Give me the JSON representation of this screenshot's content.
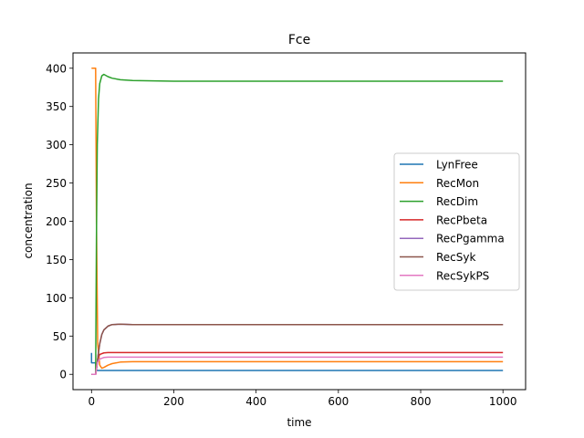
{
  "chart_data": {
    "type": "line",
    "title": "Fce",
    "xlabel": "time",
    "ylabel": "concentration",
    "xlim": [
      -45,
      1055
    ],
    "ylim": [
      -20,
      420
    ],
    "xticks": [
      0,
      200,
      400,
      600,
      800,
      1000
    ],
    "yticks": [
      0,
      50,
      100,
      150,
      200,
      250,
      300,
      350,
      400
    ],
    "grid": false,
    "legend_position": "center-right",
    "series": [
      {
        "name": "LynFree",
        "color": "#1f77b4",
        "points": [
          [
            0,
            28
          ],
          [
            0.01,
            15
          ],
          [
            10,
            15
          ],
          [
            11,
            6
          ],
          [
            15,
            5
          ],
          [
            20,
            5
          ],
          [
            1000,
            5
          ]
        ]
      },
      {
        "name": "RecMon",
        "color": "#ff7f0e",
        "points": [
          [
            0,
            400
          ],
          [
            10,
            400
          ],
          [
            12,
            200
          ],
          [
            15,
            40
          ],
          [
            20,
            12
          ],
          [
            25,
            8
          ],
          [
            30,
            9
          ],
          [
            40,
            12
          ],
          [
            50,
            14
          ],
          [
            70,
            16
          ],
          [
            100,
            16.5
          ],
          [
            150,
            16.5
          ],
          [
            1000,
            16.5
          ]
        ]
      },
      {
        "name": "RecDim",
        "color": "#2ca02c",
        "points": [
          [
            0,
            0
          ],
          [
            10,
            0
          ],
          [
            12,
            180
          ],
          [
            14,
            300
          ],
          [
            17,
            360
          ],
          [
            20,
            380
          ],
          [
            25,
            390
          ],
          [
            30,
            392
          ],
          [
            40,
            389
          ],
          [
            50,
            387
          ],
          [
            70,
            385
          ],
          [
            100,
            384
          ],
          [
            150,
            383.5
          ],
          [
            200,
            383
          ],
          [
            1000,
            383
          ]
        ]
      },
      {
        "name": "RecPbeta",
        "color": "#d62728",
        "points": [
          [
            0,
            0
          ],
          [
            10,
            0
          ],
          [
            15,
            20
          ],
          [
            20,
            26
          ],
          [
            30,
            28
          ],
          [
            40,
            28.5
          ],
          [
            1000,
            28.5
          ]
        ]
      },
      {
        "name": "RecPgamma",
        "color": "#9467bd",
        "points": [
          [
            0,
            0
          ],
          [
            10,
            0
          ],
          [
            13,
            10
          ],
          [
            16,
            25
          ],
          [
            20,
            40
          ],
          [
            25,
            52
          ],
          [
            30,
            58
          ],
          [
            40,
            63
          ],
          [
            50,
            65
          ],
          [
            70,
            65.5
          ],
          [
            100,
            65
          ],
          [
            1000,
            65
          ]
        ]
      },
      {
        "name": "RecSyk",
        "color": "#8c564b",
        "points": [
          [
            0,
            0
          ],
          [
            10,
            0
          ],
          [
            13,
            10
          ],
          [
            16,
            25
          ],
          [
            20,
            40
          ],
          [
            25,
            52
          ],
          [
            30,
            58
          ],
          [
            40,
            63
          ],
          [
            50,
            65
          ],
          [
            70,
            65.5
          ],
          [
            100,
            65
          ],
          [
            1000,
            65
          ]
        ]
      },
      {
        "name": "RecSykPS",
        "color": "#e377c2",
        "points": [
          [
            0,
            0
          ],
          [
            10,
            0
          ],
          [
            14,
            15
          ],
          [
            20,
            20
          ],
          [
            30,
            22
          ],
          [
            40,
            22.5
          ],
          [
            1000,
            22.5
          ]
        ]
      }
    ]
  }
}
